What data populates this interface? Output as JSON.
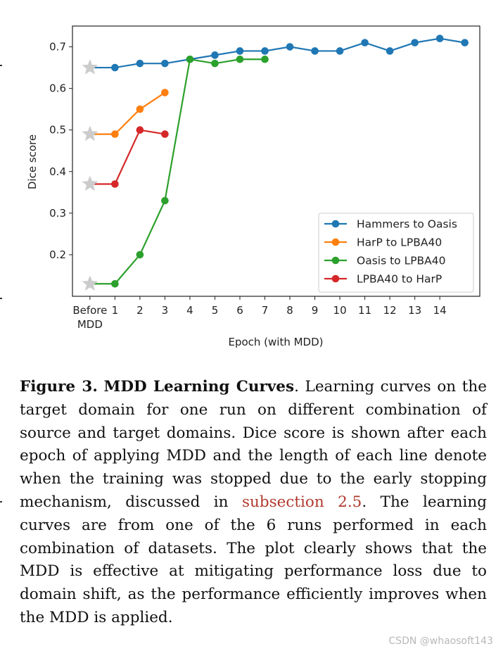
{
  "figure": {
    "caption": {
      "label": "Figure 3.",
      "title": "MDD Learning Curves",
      "text_before_link": ". Learning curves on the target domain for one run on different combination of source and target domains. Dice score is shown after each epoch of applying MDD and the length of each line denote when the training was stopped due to the early stopping mechanism, discussed in ",
      "link_text": "subsection 2.5",
      "text_after_link": ". The learning curves are from one of the 6 runs performed in each combination of datasets. The plot clearly shows that the MDD is effective at mitigating performance loss due to domain shift, as the performance efficiently improves when the MDD is applied."
    },
    "watermark": "CSDN @whaosoft143"
  },
  "chart_data": {
    "type": "line",
    "title": "",
    "xlabel": "Epoch (with MDD)",
    "ylabel": "Dice score",
    "x_tick_labels": [
      "Before\nMDD",
      "1",
      "2",
      "3",
      "4",
      "5",
      "6",
      "7",
      "8",
      "9",
      "10",
      "11",
      "12",
      "13",
      "14"
    ],
    "xlim": [
      -0.7,
      15.6
    ],
    "ylim": [
      0.1,
      0.75
    ],
    "y_ticks": [
      0.2,
      0.3,
      0.4,
      0.5,
      0.6,
      0.7
    ],
    "grid": false,
    "legend_position": "lower-right",
    "before_marker": "star",
    "before_marker_color": "#cccccc",
    "series": [
      {
        "name": "Hammers to Oasis",
        "color": "#1f77b4",
        "values": [
          0.65,
          0.65,
          0.66,
          0.66,
          0.67,
          0.68,
          0.69,
          0.69,
          0.7,
          0.69,
          0.69,
          0.71,
          0.69,
          0.71,
          0.72,
          0.71
        ]
      },
      {
        "name": "HarP to LPBA40",
        "color": "#ff7f0e",
        "values": [
          0.49,
          0.49,
          0.55,
          0.59
        ]
      },
      {
        "name": "Oasis to LPBA40",
        "color": "#2ca02c",
        "values": [
          0.13,
          0.13,
          0.2,
          0.33,
          0.67,
          0.66,
          0.67,
          0.67
        ]
      },
      {
        "name": "LPBA40 to HarP",
        "color": "#d62728",
        "values": [
          0.37,
          0.37,
          0.5,
          0.49
        ]
      }
    ]
  }
}
